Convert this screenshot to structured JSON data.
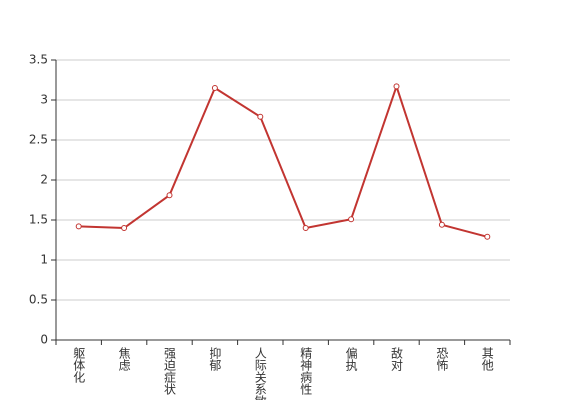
{
  "chart_data": {
    "type": "line",
    "categories": [
      "躯体化",
      "焦虑",
      "强迫症状",
      "抑郁",
      "人际关系敏感",
      "精神病性",
      "偏执",
      "敌对",
      "恐怖",
      "其他"
    ],
    "values": [
      1.42,
      1.4,
      1.81,
      3.15,
      2.79,
      1.4,
      1.51,
      3.17,
      1.44,
      1.29
    ],
    "color": "#c23531",
    "ylim": [
      0,
      3.5
    ],
    "yticks": [
      0,
      0.5,
      1,
      1.5,
      2,
      2.5,
      3,
      3.5
    ],
    "grid": true
  }
}
